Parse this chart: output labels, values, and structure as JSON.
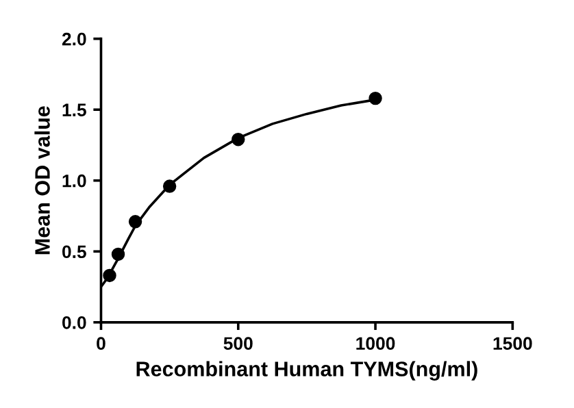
{
  "chart_data": {
    "type": "scatter",
    "xlabel": "Recombinant Human TYMS(ng/ml)",
    "ylabel": "Mean OD value",
    "xlim": [
      0,
      1500
    ],
    "xticks": [
      0,
      500,
      1000,
      1500
    ],
    "ylim": [
      0,
      2.0
    ],
    "yticks": [
      {
        "value": 0,
        "label": "0.0"
      },
      {
        "value": 0.5,
        "label": "0.5"
      },
      {
        "value": 1.0,
        "label": "1.0"
      },
      {
        "value": 1.5,
        "label": "1.5"
      },
      {
        "value": 2.0,
        "label": "2.0"
      }
    ],
    "grid": false,
    "legend": false,
    "series": [
      {
        "marker": "circle",
        "color": "#000000",
        "x": [
          31.25,
          62.5,
          125,
          250,
          500,
          1000
        ],
        "values": [
          0.33,
          0.48,
          0.71,
          0.96,
          1.29,
          1.58
        ]
      },
      {
        "type": "line",
        "color": "#000000",
        "line_style": "solid",
        "x": [
          0,
          15,
          31.25,
          62.5,
          100,
          125,
          175,
          250,
          375,
          500,
          625,
          750,
          875,
          1000
        ],
        "values": [
          0.25,
          0.29,
          0.34,
          0.45,
          0.59,
          0.68,
          0.81,
          0.97,
          1.16,
          1.3,
          1.4,
          1.47,
          1.53,
          1.57
        ]
      }
    ]
  }
}
